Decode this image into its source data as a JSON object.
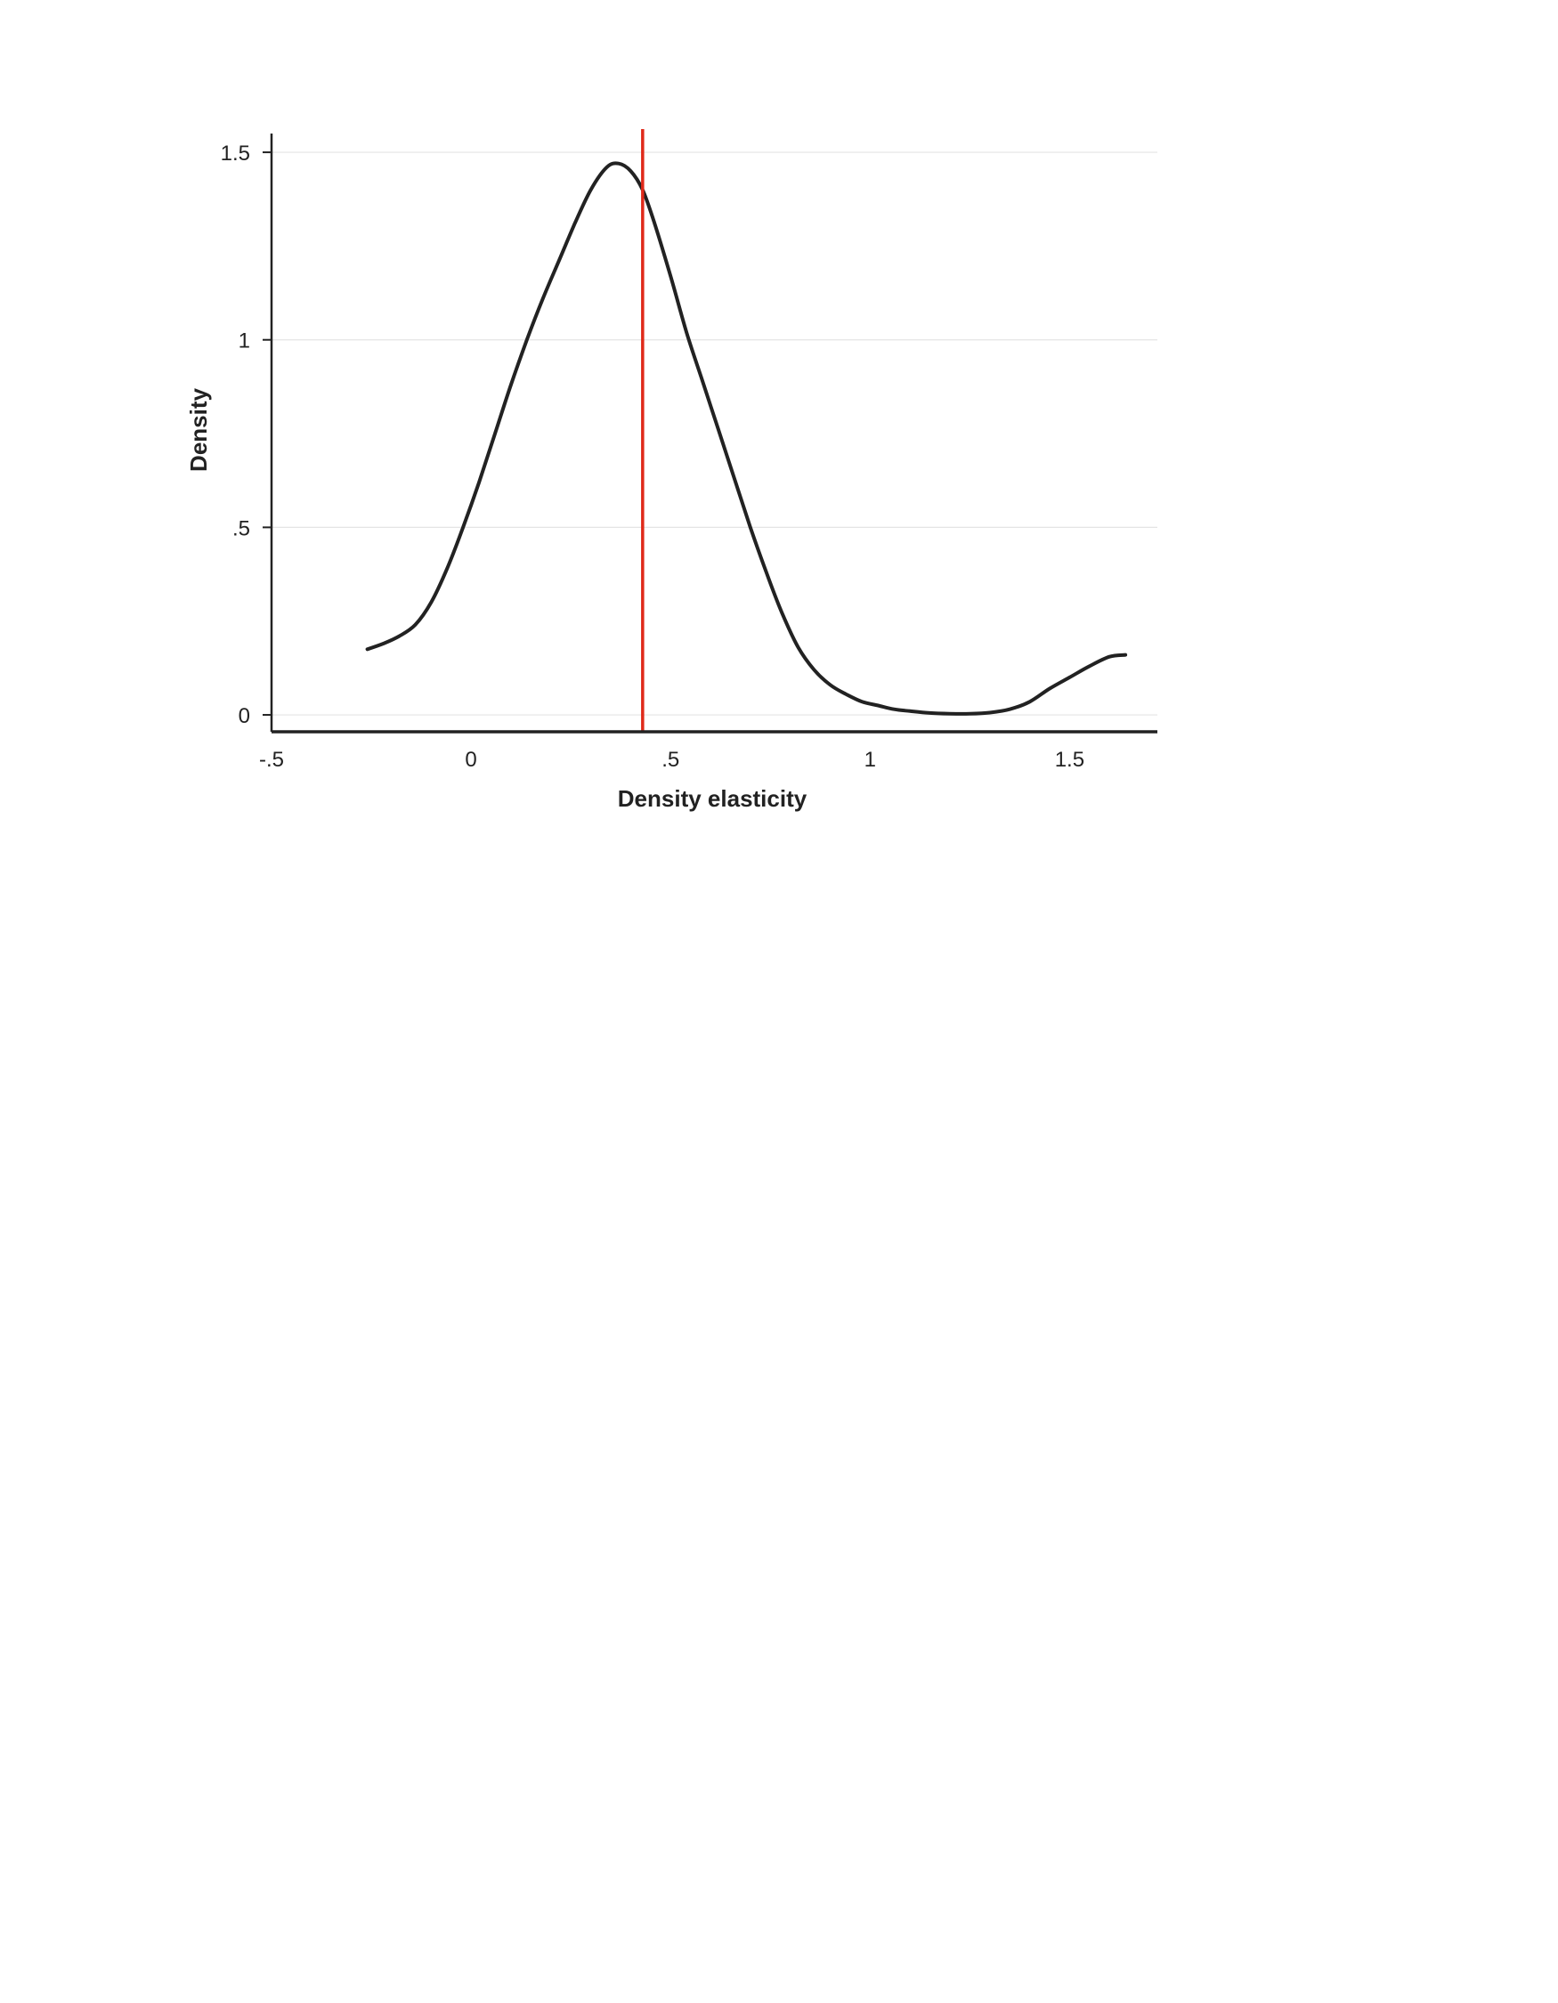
{
  "chart_data": {
    "type": "line",
    "title": "",
    "xlabel": "Density elasticity",
    "ylabel": "Density",
    "xlim": [
      -0.5,
      1.72
    ],
    "ylim": [
      -0.045,
      1.55
    ],
    "x_ticks": [
      {
        "value": -0.5,
        "label": "-.5"
      },
      {
        "value": 0,
        "label": "0"
      },
      {
        "value": 0.5,
        "label": ".5"
      },
      {
        "value": 1,
        "label": "1"
      },
      {
        "value": 1.5,
        "label": "1.5"
      }
    ],
    "y_ticks": [
      {
        "value": 0,
        "label": "0"
      },
      {
        "value": 0.5,
        "label": ".5"
      },
      {
        "value": 1,
        "label": "1"
      },
      {
        "value": 1.5,
        "label": "1.5"
      }
    ],
    "grid": {
      "horizontal": true,
      "vertical": false
    },
    "legend": "none",
    "series": [
      {
        "color": "#222222",
        "x": [
          -0.26,
          -0.22,
          -0.18,
          -0.14,
          -0.1,
          -0.06,
          -0.02,
          0.02,
          0.06,
          0.1,
          0.14,
          0.18,
          0.22,
          0.26,
          0.3,
          0.34,
          0.37,
          0.4,
          0.43,
          0.46,
          0.5,
          0.54,
          0.58,
          0.62,
          0.66,
          0.7,
          0.74,
          0.78,
          0.82,
          0.86,
          0.9,
          0.94,
          0.98,
          1.02,
          1.06,
          1.1,
          1.15,
          1.2,
          1.25,
          1.3,
          1.35,
          1.4,
          1.45,
          1.5,
          1.55,
          1.6,
          1.64
        ],
        "y": [
          0.175,
          0.19,
          0.21,
          0.24,
          0.3,
          0.39,
          0.5,
          0.62,
          0.75,
          0.88,
          1.0,
          1.11,
          1.21,
          1.31,
          1.4,
          1.46,
          1.47,
          1.45,
          1.4,
          1.31,
          1.17,
          1.02,
          0.89,
          0.76,
          0.63,
          0.5,
          0.38,
          0.27,
          0.18,
          0.12,
          0.08,
          0.055,
          0.035,
          0.025,
          0.015,
          0.01,
          0.005,
          0.003,
          0.003,
          0.006,
          0.015,
          0.035,
          0.07,
          0.1,
          0.13,
          0.155,
          0.16
        ]
      }
    ],
    "reference_lines": [
      {
        "orientation": "vertical",
        "x": 0.43,
        "color": "#e02a1a"
      }
    ]
  }
}
